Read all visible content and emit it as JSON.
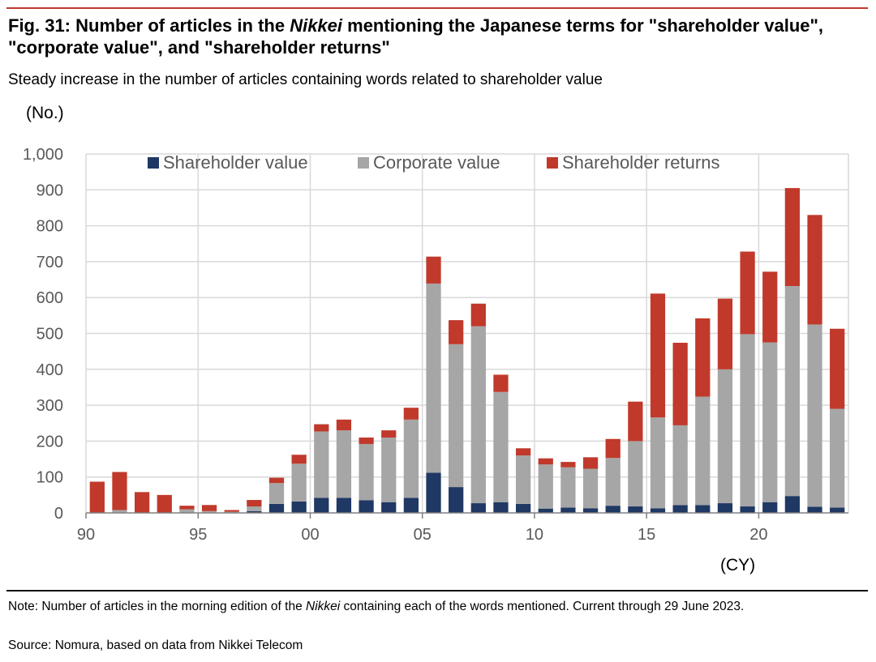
{
  "header": {
    "title_part1": "Fig. 31: Number of articles in the ",
    "title_italic": "Nikkei",
    "title_part2": " mentioning the Japanese terms for \"shareholder value\", \"corporate value\", and \"shareholder returns\"",
    "subtitle": "Steady increase in the number of articles containing words related to shareholder value"
  },
  "footer": {
    "note_part1": "Note: Number of articles in the morning edition of the ",
    "note_italic": "Nikkei",
    "note_part2": " containing each of the words mentioned. Current through 29 June 2023.",
    "source": "Source: Nomura, based on data from Nikkei Telecom"
  },
  "chart_data": {
    "type": "bar",
    "stacked": true,
    "ylabel": "(No.)",
    "xlabel": "(CY)",
    "ylim": [
      0,
      1000
    ],
    "yticks": [
      0,
      100,
      200,
      300,
      400,
      500,
      600,
      700,
      800,
      900,
      1000
    ],
    "ytick_labels": [
      "0",
      "100",
      "200",
      "300",
      "400",
      "500",
      "600",
      "700",
      "800",
      "900",
      "1,000"
    ],
    "xticks": [
      {
        "year": 1990,
        "label": "90"
      },
      {
        "year": 1995,
        "label": "95"
      },
      {
        "year": 2000,
        "label": "00"
      },
      {
        "year": 2005,
        "label": "05"
      },
      {
        "year": 2010,
        "label": "10"
      },
      {
        "year": 2015,
        "label": "15"
      },
      {
        "year": 2020,
        "label": "20"
      }
    ],
    "grid": true,
    "legend_position": "top",
    "categories": [
      1990,
      1991,
      1992,
      1993,
      1994,
      1995,
      1996,
      1997,
      1998,
      1999,
      2000,
      2001,
      2002,
      2003,
      2004,
      2005,
      2006,
      2007,
      2008,
      2009,
      2010,
      2011,
      2012,
      2013,
      2014,
      2015,
      2016,
      2017,
      2018,
      2019,
      2020,
      2021,
      2022,
      2023
    ],
    "series": [
      {
        "name": "Shareholder value",
        "color": "#1f3864",
        "values": [
          0,
          0,
          0,
          0,
          0,
          0,
          0,
          5,
          25,
          32,
          42,
          42,
          35,
          30,
          42,
          112,
          72,
          27,
          30,
          25,
          12,
          15,
          13,
          20,
          18,
          13,
          22,
          22,
          27,
          18,
          30,
          47,
          17,
          15
        ]
      },
      {
        "name": "Corporate value",
        "color": "#a6a6a6",
        "values": [
          0,
          8,
          0,
          0,
          10,
          5,
          3,
          13,
          58,
          105,
          185,
          188,
          157,
          180,
          218,
          527,
          398,
          493,
          307,
          135,
          123,
          112,
          110,
          133,
          182,
          253,
          222,
          302,
          373,
          480,
          445,
          585,
          508,
          275
        ]
      },
      {
        "name": "Shareholder returns",
        "color": "#c0392b",
        "values": [
          87,
          106,
          58,
          50,
          10,
          17,
          5,
          18,
          15,
          25,
          20,
          30,
          18,
          20,
          33,
          75,
          67,
          63,
          48,
          20,
          17,
          15,
          32,
          53,
          110,
          345,
          230,
          218,
          197,
          230,
          197,
          273,
          305,
          223
        ]
      }
    ]
  }
}
